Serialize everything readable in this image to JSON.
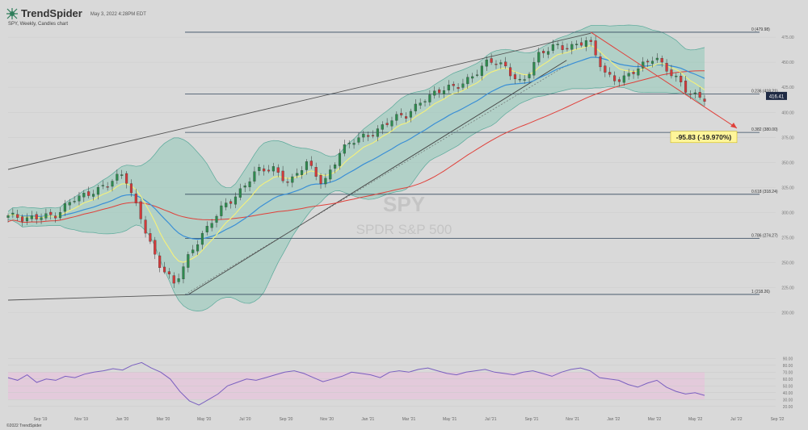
{
  "header": {
    "brand": "TrendSpider",
    "timestamp": "May 3, 2022 4:28PM EDT",
    "subtitle": "SPY, Weekly, Candles chart",
    "copyright": "©2022 TrendSpider"
  },
  "watermark": {
    "symbol": "SPY",
    "name": "SPDR S&P 500"
  },
  "colors": {
    "background": "#d9d9d9",
    "bollinger_fill": "#8fc9b8",
    "ema_yellow": "#f5f17a",
    "sma_blue": "#3a8fd6",
    "sma_red": "#e0403a",
    "candle_up": "#2e8b4e",
    "candle_down": "#d23a3a",
    "rsi_line": "#7a5fc0",
    "rsi_band": "#e7c3dc",
    "callout": "#fff59a",
    "fib_line": "#34495e"
  },
  "chart_data": [
    {
      "type": "candlestick",
      "title": "SPY, Weekly, Candles chart",
      "x_tick_labels": [
        "Sep '19",
        "Nov '19",
        "Jan '20",
        "Mar '20",
        "May '20",
        "Jul '20",
        "Sep '20",
        "Nov '20",
        "Jan '21",
        "Mar '21",
        "May '21",
        "Jul '21",
        "Sep '21",
        "Nov '21",
        "Jan '22",
        "Mar '22",
        "May '22",
        "Jul '22",
        "Sep '22"
      ],
      "y_ticks": [
        200,
        225,
        250,
        275,
        300,
        325,
        350,
        375,
        400,
        425,
        450,
        475
      ],
      "ylim": [
        186,
        488
      ],
      "last_price": "416.41",
      "close_path": [
        [
          "Jul '19",
          297
        ],
        [
          "Aug '19",
          291
        ],
        [
          "Sep '19",
          299
        ],
        [
          "Oct '19",
          297
        ],
        [
          "Nov '19",
          313
        ],
        [
          "Dec '19",
          322
        ],
        [
          "Jan '20",
          327
        ],
        [
          "Feb '20",
          338
        ],
        [
          "Feb '20",
          297
        ],
        [
          "Mar '20",
          248
        ],
        [
          "Mar '20",
          229
        ],
        [
          "Apr '20",
          262
        ],
        [
          "May '20",
          282
        ],
        [
          "Jun '20",
          308
        ],
        [
          "Jul '20",
          322
        ],
        [
          "Aug '20",
          340
        ],
        [
          "Sep '20",
          345
        ],
        [
          "Sep '20",
          330
        ],
        [
          "Oct '20",
          348
        ],
        [
          "Nov '20",
          330
        ],
        [
          "Nov '20",
          360
        ],
        [
          "Dec '20",
          372
        ],
        [
          "Jan '21",
          381
        ],
        [
          "Feb '21",
          391
        ],
        [
          "Mar '21",
          396
        ],
        [
          "Apr '21",
          415
        ],
        [
          "May '21",
          420
        ],
        [
          "Jun '21",
          425
        ],
        [
          "Jul '21",
          438
        ],
        [
          "Aug '21",
          450
        ],
        [
          "Sep '21",
          445
        ],
        [
          "Sep '21",
          430
        ],
        [
          "Oct '21",
          455
        ],
        [
          "Nov '21",
          468
        ],
        [
          "Dec '21",
          466
        ],
        [
          "Jan '22",
          470
        ],
        [
          "Jan '22",
          440
        ],
        [
          "Feb '22",
          432
        ],
        [
          "Mar '22",
          442
        ],
        [
          "Mar '22",
          458
        ],
        [
          "Apr '22",
          438
        ],
        [
          "Apr '22",
          418
        ],
        [
          "May '22",
          416
        ]
      ],
      "overlays": [
        "Bollinger Bands",
        "EMA (yellow)",
        "SMA (blue)",
        "SMA 200 (red)"
      ],
      "fibonacci": [
        {
          "ratio_label": "0 (479.98)",
          "value": 479.98
        },
        {
          "ratio_label": "0.236 (418.21)",
          "value": 418.21
        },
        {
          "ratio_label": "0.382 (380.00)",
          "value": 380.0
        },
        {
          "ratio_label": "0.618 (318.24)",
          "value": 318.24
        },
        {
          "ratio_label": "0.786 (274.27)",
          "value": 274.27
        },
        {
          "ratio_label": "1 (218.26)",
          "value": 218.26
        }
      ],
      "annotation": {
        "text": "-95.83 (-19.970%)",
        "from": 479.98,
        "to": 384.15
      }
    },
    {
      "type": "line",
      "title": "RSI",
      "y_ticks": [
        20,
        30,
        40,
        50,
        60,
        70,
        80,
        90
      ],
      "ylim": [
        15,
        95
      ],
      "values": [
        62,
        58,
        66,
        55,
        60,
        58,
        64,
        62,
        67,
        70,
        72,
        75,
        73,
        80,
        84,
        76,
        70,
        60,
        42,
        28,
        22,
        30,
        38,
        50,
        55,
        60,
        58,
        62,
        66,
        70,
        72,
        68,
        62,
        56,
        60,
        64,
        70,
        68,
        66,
        62,
        70,
        72,
        70,
        74,
        76,
        72,
        68,
        66,
        70,
        72,
        74,
        70,
        68,
        66,
        70,
        72,
        68,
        64,
        70,
        74,
        76,
        72,
        62,
        60,
        58,
        52,
        48,
        54,
        58,
        48,
        42,
        38,
        40,
        36
      ]
    }
  ]
}
